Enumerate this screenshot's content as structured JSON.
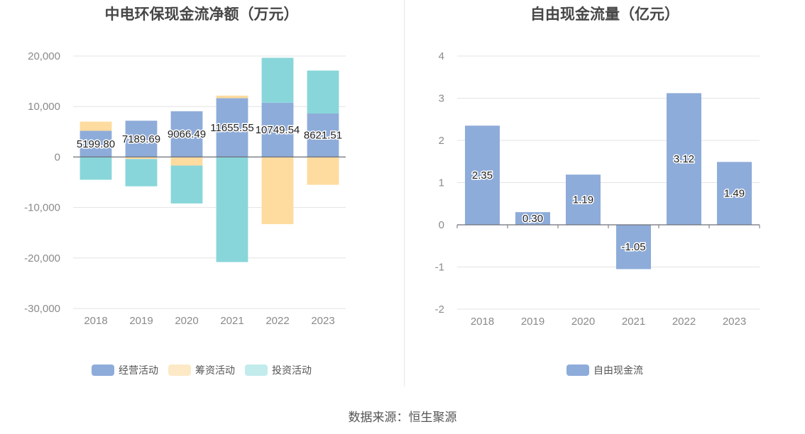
{
  "source_label": "数据来源：恒生聚源",
  "chart_data": [
    {
      "type": "bar",
      "stacked": true,
      "title": "中电环保现金流净额（万元）",
      "categories": [
        "2018",
        "2019",
        "2020",
        "2021",
        "2022",
        "2023"
      ],
      "ylim": [
        -30000,
        20000
      ],
      "yticks": [
        20000,
        10000,
        0,
        -10000,
        -20000,
        -30000
      ],
      "ytick_labels": [
        "20,000",
        "10,000",
        "0",
        "-10,000",
        "-20,000",
        "-30,000"
      ],
      "grid": true,
      "legend_position": "bottom",
      "series": [
        {
          "name": "经营活动",
          "color": "#8eacd9",
          "values": [
            5199.8,
            7189.69,
            9066.49,
            11655.55,
            10749.54,
            8621.51
          ],
          "data_labels": [
            "5199.80",
            "7189.69",
            "9066.49",
            "11655.55",
            "10749.54",
            "8621.51"
          ]
        },
        {
          "name": "筹资活动",
          "color": "#fedb9e",
          "values": [
            1800,
            -400,
            -1700,
            500,
            -13300,
            -5500
          ]
        },
        {
          "name": "投资活动",
          "color": "#88d6da",
          "values": [
            -4500,
            -5400,
            -7500,
            -20800,
            8900,
            8500
          ]
        }
      ]
    },
    {
      "type": "bar",
      "title": "自由现金流量（亿元）",
      "categories": [
        "2018",
        "2019",
        "2020",
        "2021",
        "2022",
        "2023"
      ],
      "ylim": [
        -2,
        4
      ],
      "yticks": [
        4,
        3,
        2,
        1,
        0,
        -1,
        -2
      ],
      "ytick_labels": [
        "4",
        "3",
        "2",
        "1",
        "0",
        "-1",
        "-2"
      ],
      "grid": true,
      "legend_position": "bottom",
      "series": [
        {
          "name": "自由现金流",
          "color": "#8eacd9",
          "values": [
            2.35,
            0.3,
            1.19,
            -1.05,
            3.12,
            1.49
          ],
          "data_labels": [
            "2.35",
            "0.30",
            "1.19",
            "-1.05",
            "3.12",
            "1.49"
          ]
        }
      ]
    }
  ]
}
